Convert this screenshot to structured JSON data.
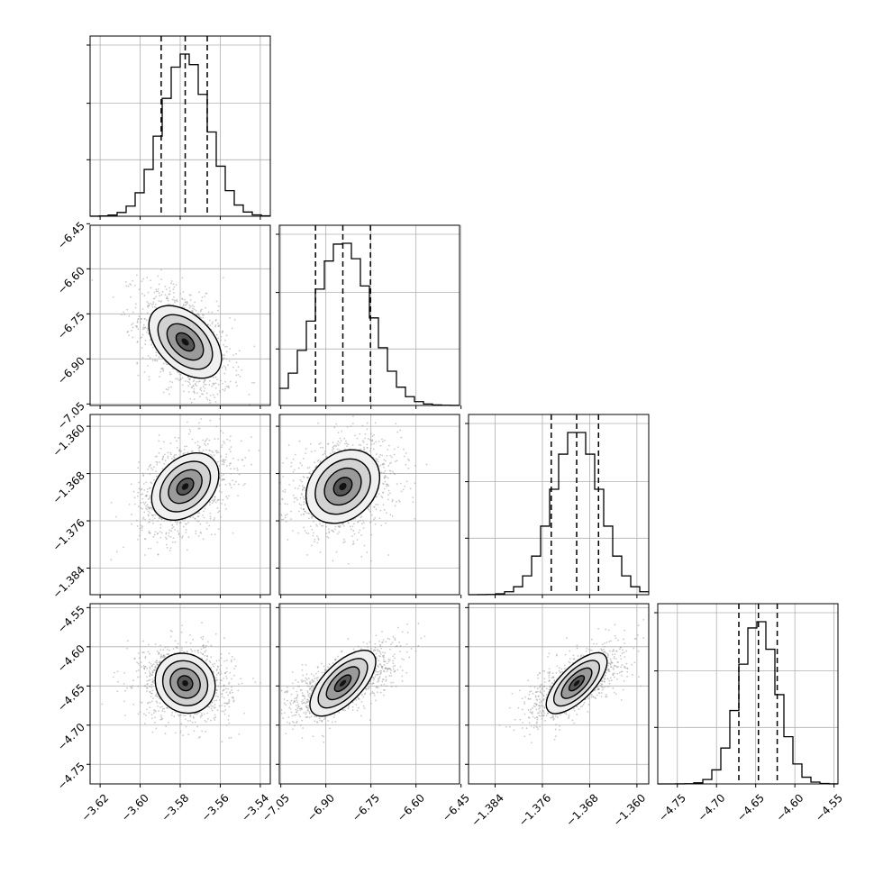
{
  "chart_data": {
    "type": "corner",
    "parameters": [
      {
        "range": [
          -3.625,
          -3.535
        ],
        "ticks": [
          "−3.62",
          "−3.60",
          "−3.58",
          "−3.56",
          "−3.54"
        ],
        "tick_values": [
          -3.62,
          -3.6,
          -3.58,
          -3.56,
          -3.54
        ],
        "quantiles": [
          -3.5895,
          -3.5775,
          -3.5665
        ],
        "median": -3.5775,
        "sigma": 0.0115
      },
      {
        "range": [
          -7.055,
          -6.455
        ],
        "ticks": [
          "−7.05",
          "−6.90",
          "−6.75",
          "−6.60",
          "−6.45"
        ],
        "tick_values": [
          -7.05,
          -6.9,
          -6.75,
          -6.6,
          -6.45
        ],
        "quantiles": [
          -6.9345,
          -6.8435,
          -6.7515
        ],
        "median": -6.8435,
        "sigma": 0.092
      },
      {
        "range": [
          -1.3885,
          -1.358
        ],
        "ticks": [
          "−1.384",
          "−1.376",
          "−1.368",
          "−1.360"
        ],
        "tick_values": [
          -1.384,
          -1.376,
          -1.368,
          -1.36
        ],
        "quantiles": [
          -1.3745,
          -1.3702,
          -1.3665
        ],
        "median": -1.3702,
        "sigma": 0.004
      },
      {
        "range": [
          -4.775,
          -4.545
        ],
        "ticks": [
          "−4.75",
          "−4.70",
          "−4.65",
          "−4.60",
          "−4.55"
        ],
        "tick_values": [
          -4.75,
          -4.7,
          -4.65,
          -4.6,
          -4.55
        ],
        "quantiles": [
          -4.6715,
          -4.6465,
          -4.6225
        ],
        "median": -4.6465,
        "sigma": 0.024
      }
    ],
    "y_ticks": [
      null,
      {
        "labels": [
          "−6.45",
          "−6.60",
          "−6.75",
          "−6.90",
          "−7.05"
        ],
        "values": [
          -6.45,
          -6.6,
          -6.75,
          -6.9,
          -7.05
        ]
      },
      {
        "labels": [
          "−1.360",
          "−1.368",
          "−1.376",
          "−1.384"
        ],
        "values": [
          -1.36,
          -1.368,
          -1.376,
          -1.384
        ]
      },
      {
        "labels": [
          "−4.55",
          "−4.60",
          "−4.65",
          "−4.70",
          "−4.75"
        ],
        "values": [
          -4.55,
          -4.6,
          -4.65,
          -4.7,
          -4.75
        ]
      }
    ],
    "correlations": {
      "1-0": -0.45,
      "2-0": 0.35,
      "2-1": 0.25,
      "3-0": -0.1,
      "3-1": 0.65,
      "3-2": 0.7
    },
    "histogram": {
      "bins": 20,
      "style": "step"
    },
    "grid": true,
    "colors": {
      "line": "#000000",
      "points": "#9e9e9e",
      "grid": "#b0b0b0"
    }
  }
}
